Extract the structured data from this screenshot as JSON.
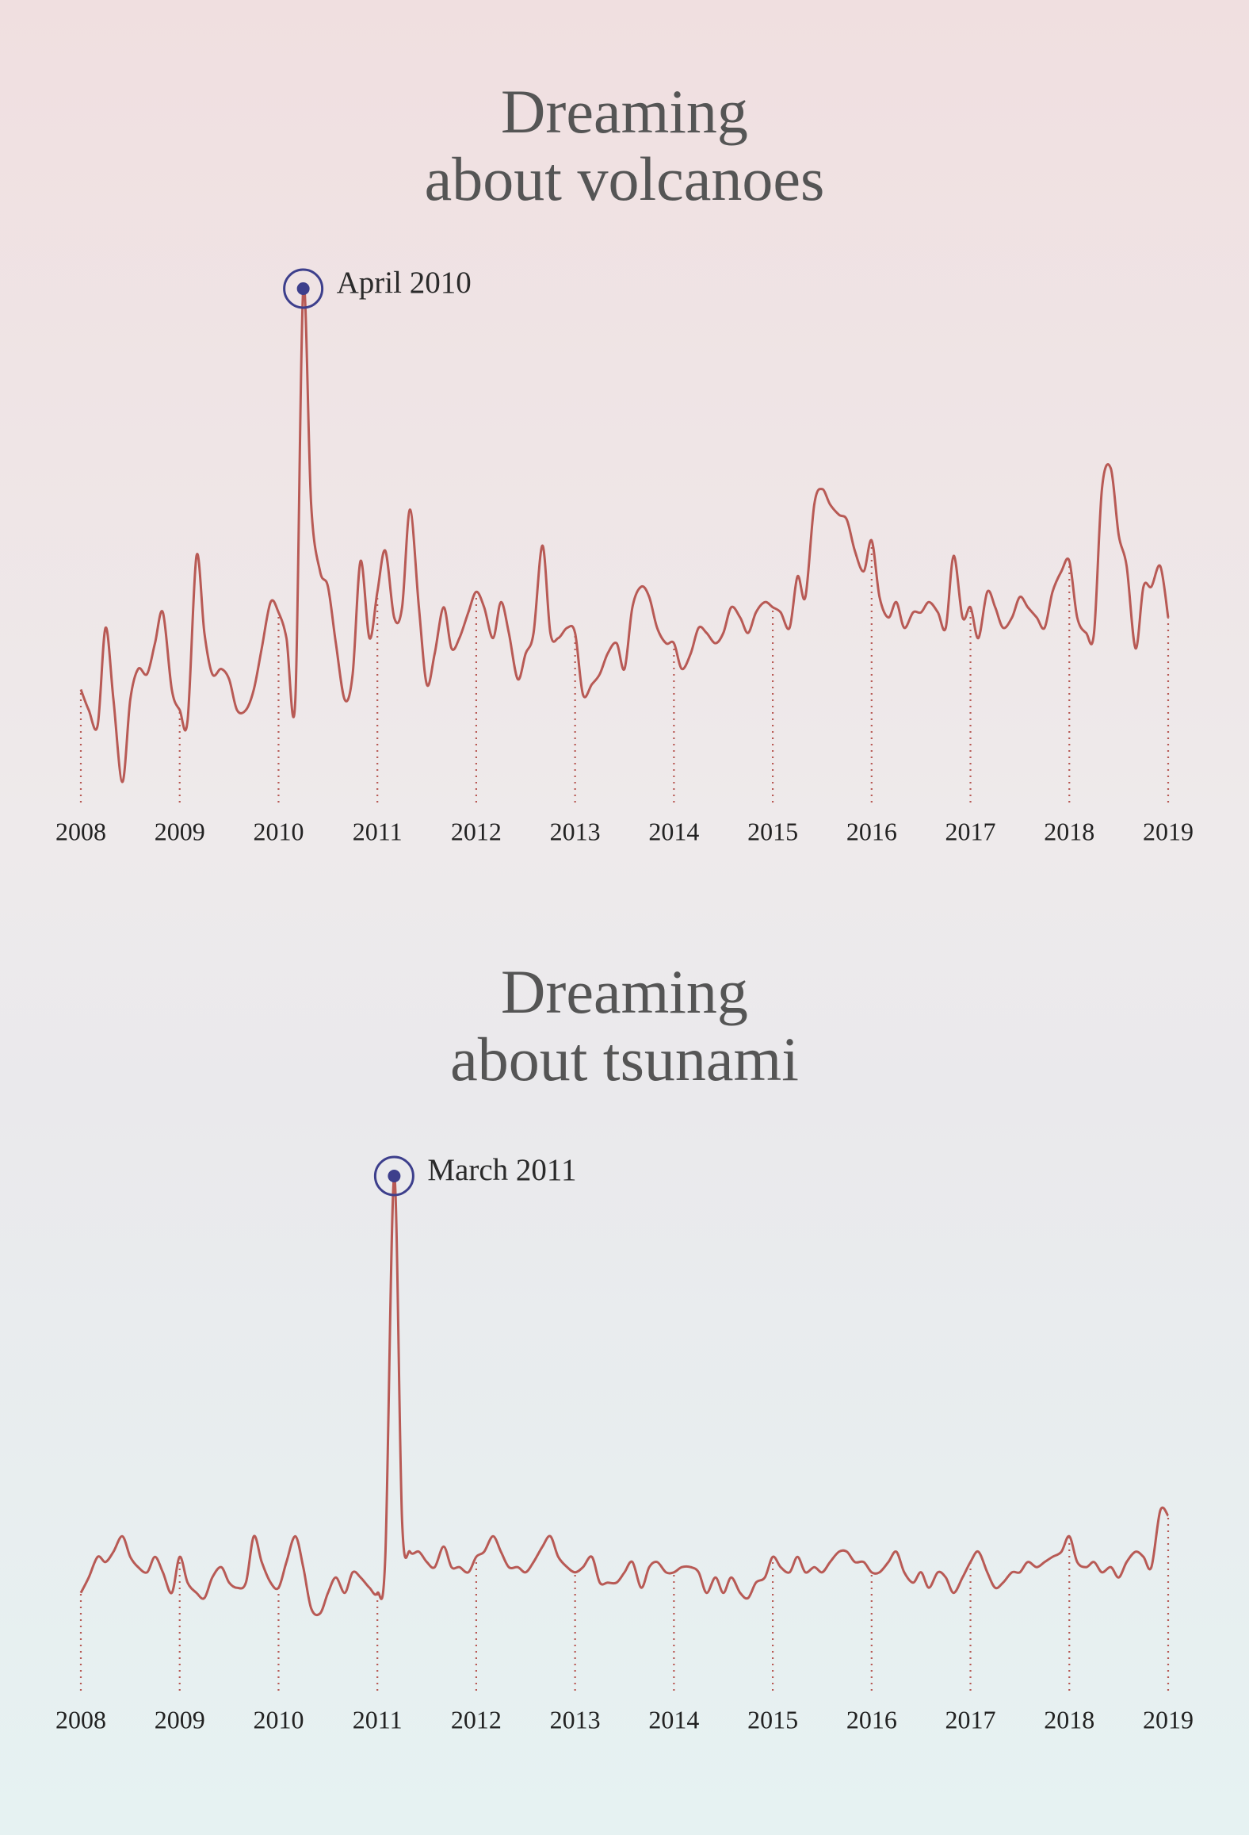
{
  "chart_data": [
    {
      "type": "line",
      "title": "Dreaming\nabout volcanoes",
      "color": "#b85a55",
      "x": [
        2008,
        2008.08,
        2008.17,
        2008.25,
        2008.33,
        2008.42,
        2008.5,
        2008.58,
        2008.67,
        2008.75,
        2008.83,
        2008.92,
        2009,
        2009.08,
        2009.17,
        2009.25,
        2009.33,
        2009.42,
        2009.5,
        2009.58,
        2009.67,
        2009.75,
        2009.83,
        2009.92,
        2010,
        2010.08,
        2010.17,
        2010.25,
        2010.33,
        2010.42,
        2010.5,
        2010.58,
        2010.67,
        2010.75,
        2010.83,
        2010.92,
        2011,
        2011.08,
        2011.17,
        2011.25,
        2011.33,
        2011.42,
        2011.5,
        2011.58,
        2011.67,
        2011.75,
        2011.83,
        2011.92,
        2012,
        2012.08,
        2012.17,
        2012.25,
        2012.33,
        2012.42,
        2012.5,
        2012.58,
        2012.67,
        2012.75,
        2012.83,
        2012.92,
        2013,
        2013.08,
        2013.17,
        2013.25,
        2013.33,
        2013.42,
        2013.5,
        2013.58,
        2013.67,
        2013.75,
        2013.83,
        2013.92,
        2014,
        2014.08,
        2014.17,
        2014.25,
        2014.33,
        2014.42,
        2014.5,
        2014.58,
        2014.67,
        2014.75,
        2014.83,
        2014.92,
        2015,
        2015.08,
        2015.17,
        2015.25,
        2015.33,
        2015.42,
        2015.5,
        2015.58,
        2015.67,
        2015.75,
        2015.83,
        2015.92,
        2016,
        2016.08,
        2016.17,
        2016.25,
        2016.33,
        2016.42,
        2016.5,
        2016.58,
        2016.67,
        2016.75,
        2016.83,
        2016.92,
        2017,
        2017.08,
        2017.17,
        2017.25,
        2017.33,
        2017.42,
        2017.5,
        2017.58,
        2017.67,
        2017.75,
        2017.83,
        2017.92,
        2018,
        2018.08,
        2018.17,
        2018.25,
        2018.33,
        2018.42,
        2018.5,
        2018.58,
        2018.67,
        2018.75,
        2018.83,
        2018.92,
        2019
      ],
      "values": [
        22,
        18,
        15,
        34,
        20,
        4,
        20,
        26,
        25,
        31,
        37,
        22,
        18,
        16,
        48,
        33,
        25,
        26,
        24,
        18,
        18,
        22,
        30,
        39,
        37,
        32,
        20,
        100,
        58,
        45,
        42,
        31,
        20,
        25,
        47,
        32,
        41,
        49,
        36,
        38,
        57,
        38,
        23,
        29,
        38,
        30,
        32,
        37,
        41,
        38,
        32,
        39,
        33,
        24,
        29,
        33,
        50,
        33,
        32,
        34,
        33,
        21,
        23,
        25,
        29,
        31,
        26,
        38,
        42,
        40,
        34,
        31,
        31,
        26,
        29,
        34,
        33,
        31,
        33,
        38,
        36,
        33,
        37,
        39,
        38,
        37,
        34,
        44,
        40,
        58,
        61,
        58,
        56,
        55,
        49,
        45,
        51,
        40,
        36,
        39,
        34,
        37,
        37,
        39,
        37,
        34,
        48,
        36,
        38,
        32,
        41,
        38,
        34,
        36,
        40,
        38,
        36,
        34,
        41,
        45,
        47,
        36,
        33,
        33,
        61,
        65,
        52,
        46,
        30,
        42,
        42,
        46,
        36
      ],
      "xlim": [
        2008,
        2019
      ],
      "ylim": [
        0,
        100
      ],
      "xticks": [
        2008,
        2009,
        2010,
        2011,
        2012,
        2013,
        2014,
        2015,
        2016,
        2017,
        2018,
        2019
      ],
      "annotation": {
        "label": "April 2010",
        "x": 2010.25,
        "y": 100
      }
    },
    {
      "type": "line",
      "title": "Dreaming\nabout tsunami",
      "color": "#b85a55",
      "x": [
        2008,
        2008.08,
        2008.17,
        2008.25,
        2008.33,
        2008.42,
        2008.5,
        2008.58,
        2008.67,
        2008.75,
        2008.83,
        2008.92,
        2009,
        2009.08,
        2009.17,
        2009.25,
        2009.33,
        2009.42,
        2009.5,
        2009.58,
        2009.67,
        2009.75,
        2009.83,
        2009.92,
        2010,
        2010.08,
        2010.17,
        2010.25,
        2010.33,
        2010.42,
        2010.5,
        2010.58,
        2010.67,
        2010.75,
        2010.83,
        2010.92,
        2011,
        2011.08,
        2011.17,
        2011.25,
        2011.33,
        2011.42,
        2011.5,
        2011.58,
        2011.67,
        2011.75,
        2011.83,
        2011.92,
        2012,
        2012.08,
        2012.17,
        2012.25,
        2012.33,
        2012.42,
        2012.5,
        2012.58,
        2012.67,
        2012.75,
        2012.83,
        2012.92,
        2013,
        2013.08,
        2013.17,
        2013.25,
        2013.33,
        2013.42,
        2013.5,
        2013.58,
        2013.67,
        2013.75,
        2013.83,
        2013.92,
        2014,
        2014.08,
        2014.17,
        2014.25,
        2014.33,
        2014.42,
        2014.5,
        2014.58,
        2014.67,
        2014.75,
        2014.83,
        2014.92,
        2015,
        2015.08,
        2015.17,
        2015.25,
        2015.33,
        2015.42,
        2015.5,
        2015.58,
        2015.67,
        2015.75,
        2015.83,
        2015.92,
        2016,
        2016.08,
        2016.17,
        2016.25,
        2016.33,
        2016.42,
        2016.5,
        2016.58,
        2016.67,
        2016.75,
        2016.83,
        2016.92,
        2017,
        2017.08,
        2017.17,
        2017.25,
        2017.33,
        2017.42,
        2017.5,
        2017.58,
        2017.67,
        2017.75,
        2017.83,
        2017.92,
        2018,
        2018.08,
        2018.17,
        2018.25,
        2018.33,
        2018.42,
        2018.5,
        2018.58,
        2018.67,
        2018.75,
        2018.83,
        2018.92,
        2019
      ],
      "values": [
        19,
        22,
        26,
        25,
        27,
        30,
        26,
        24,
        23,
        26,
        23,
        19,
        26,
        21,
        19,
        18,
        22,
        24,
        21,
        20,
        21,
        30,
        25,
        21,
        20,
        25,
        30,
        24,
        16,
        15,
        19,
        22,
        19,
        23,
        22,
        20,
        19,
        26,
        100,
        33,
        27,
        27,
        25,
        24,
        28,
        24,
        24,
        23,
        26,
        27,
        30,
        27,
        24,
        24,
        23,
        25,
        28,
        30,
        26,
        24,
        23,
        24,
        26,
        21,
        21,
        21,
        23,
        25,
        20,
        24,
        25,
        23,
        23,
        24,
        24,
        23,
        19,
        22,
        19,
        22,
        19,
        18,
        21,
        22,
        26,
        24,
        23,
        26,
        23,
        24,
        23,
        25,
        27,
        27,
        25,
        25,
        23,
        23,
        25,
        27,
        23,
        21,
        23,
        20,
        23,
        22,
        19,
        22,
        25,
        27,
        23,
        20,
        21,
        23,
        23,
        25,
        24,
        25,
        26,
        27,
        30,
        25,
        24,
        25,
        23,
        24,
        22,
        25,
        27,
        26,
        24,
        35,
        34
      ],
      "xlim": [
        2008,
        2019
      ],
      "ylim": [
        0,
        100
      ],
      "xticks": [
        2008,
        2009,
        2010,
        2011,
        2012,
        2013,
        2014,
        2015,
        2016,
        2017,
        2018,
        2019
      ],
      "annotation": {
        "label": "March 2011",
        "x": 2011.17,
        "y": 100
      }
    }
  ]
}
